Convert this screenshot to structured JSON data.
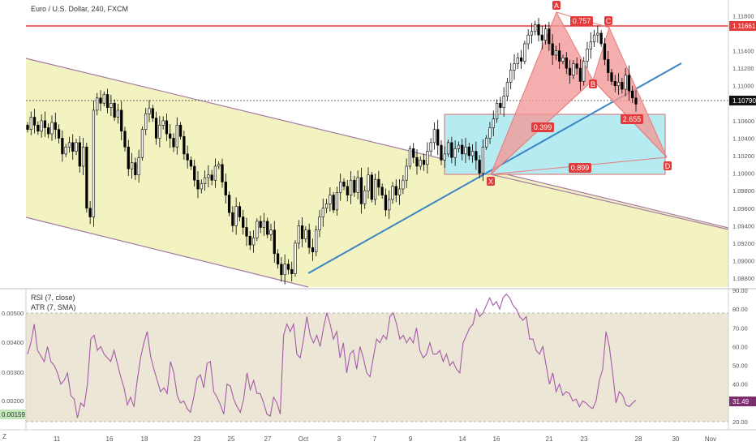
{
  "header": {
    "symbol_title": "Euro / U.S. Dollar, 240, FXCM",
    "rsi_label": "RSI (7, close)",
    "atr_label": "ATR (7, SMA)",
    "corner_label": "Z"
  },
  "colors": {
    "bull": "#ffffff",
    "bear": "#000000",
    "channel_fill": "#f3f2c1",
    "channel_line": "#a57ba5",
    "resistance_line": "#e33b3b",
    "trend_line": "#3d85c6",
    "pattern_fill": "#f29a9a",
    "pattern_stroke": "#e67b7b",
    "box_fill": "#b6ecf1",
    "box_stroke": "#d86b6b",
    "rsi_line": "#a45aa8",
    "rsi_band": "#ece6d6",
    "last_price_bg": "#111111",
    "resistance_bg": "#e33b3b",
    "rsi_value_bg": "#7d2e6e",
    "atr_value_bg": "#c3e7b9"
  },
  "chart_data": [
    {
      "type": "candlestick",
      "title": "Euro / U.S. Dollar, 240, FXCM",
      "x_ticks": [
        "11",
        "16",
        "18",
        "23",
        "25",
        "27",
        "Oct",
        "3",
        "7",
        "9",
        "14",
        "16",
        "21",
        "23",
        "28",
        "30",
        "Nov"
      ],
      "y_ticks": [
        "1.11800",
        "1.11660",
        "1.11400",
        "1.11200",
        "1.11000",
        "1.10790",
        "1.10600",
        "1.10400",
        "1.10200",
        "1.10000",
        "1.09800",
        "1.09600",
        "1.09400",
        "1.09200",
        "1.09000",
        "1.08800"
      ],
      "ylim": [
        1.0868,
        1.1198
      ],
      "last_price": "1.10790",
      "resistance_price": "1.11661",
      "closes": [
        1.105,
        1.1064,
        1.1055,
        1.1048,
        1.106,
        1.1052,
        1.1045,
        1.1058,
        1.105,
        1.104,
        1.1022,
        1.103,
        1.1035,
        1.1025,
        1.1035,
        1.1008,
        1.103,
        1.096,
        1.095,
        1.1072,
        1.1086,
        1.108,
        1.109,
        1.1075,
        1.108,
        1.1064,
        1.1072,
        1.1048,
        1.103,
        1.1005,
        1.1012,
        1.0998,
        1.1018,
        1.105,
        1.1068,
        1.1074,
        1.1063,
        1.104,
        1.1055,
        1.106,
        1.1045,
        1.104,
        1.103,
        1.1055,
        1.1042,
        1.1022,
        1.1015,
        1.1008,
        1.0992,
        1.0982,
        1.0988,
        1.0995,
        1.0998,
        1.0992,
        1.1008,
        1.101,
        1.099,
        1.0975,
        1.0955,
        1.094,
        1.0962,
        1.095,
        1.0938,
        1.0928,
        1.0918,
        1.0926,
        1.0945,
        1.0938,
        1.0945,
        1.093,
        1.0935,
        1.0908,
        1.0896,
        1.0884,
        1.0896,
        1.089,
        1.0885,
        1.092,
        1.094,
        1.0925,
        1.0935,
        1.0915,
        1.091,
        1.0935,
        1.095,
        1.096,
        1.0965,
        1.0975,
        1.0958,
        1.0978,
        1.099,
        1.0985,
        1.0975,
        1.0992,
        1.0978,
        1.0995,
        1.0965,
        1.098,
        1.0998,
        1.097,
        1.0993,
        1.0984,
        1.0975,
        1.0958,
        1.097,
        1.0985,
        1.0975,
        1.0982,
        1.0992,
        1.1008,
        1.1028,
        1.1018,
        1.1008,
        1.1015,
        1.101,
        1.1025,
        1.1035,
        1.105,
        1.1032,
        1.1015,
        1.1022,
        1.1035,
        1.1018,
        1.1028,
        1.1032,
        1.1022,
        1.103,
        1.102,
        1.1025,
        1.1015,
        1.1,
        1.103,
        1.104,
        1.1052,
        1.1062,
        1.108,
        1.1075,
        1.1088,
        1.1104,
        1.1118,
        1.1125,
        1.1132,
        1.1128,
        1.1148,
        1.1158,
        1.1162,
        1.117,
        1.1158,
        1.1152,
        1.1165,
        1.1148,
        1.1135,
        1.114,
        1.1128,
        1.1132,
        1.112,
        1.1112,
        1.1125,
        1.112,
        1.1105,
        1.1128,
        1.1142,
        1.115,
        1.1158,
        1.116,
        1.1148,
        1.113,
        1.1115,
        1.1105,
        1.11,
        1.1104,
        1.1096,
        1.1112,
        1.1094,
        1.1086,
        1.1079
      ],
      "patterns": {
        "points": [
          "X",
          "A",
          "B",
          "C",
          "D"
        ],
        "ratios": [
          "0.757",
          "0.399",
          "2.655",
          "0.899"
        ]
      }
    },
    {
      "type": "line",
      "series": [
        {
          "name": "RSI (7, close)",
          "values": [
            56,
            62,
            72,
            58,
            55,
            52,
            60,
            52,
            50,
            46,
            40,
            42,
            46,
            34,
            32,
            22,
            30,
            28,
            40,
            64,
            66,
            58,
            60,
            56,
            54,
            52,
            58,
            51,
            44,
            38,
            29,
            33,
            28,
            42,
            54,
            62,
            68,
            55,
            48,
            42,
            36,
            38,
            35,
            52,
            46,
            34,
            30,
            31,
            27,
            25,
            33,
            43,
            45,
            38,
            51,
            52,
            36,
            33,
            29,
            24,
            40,
            39,
            32,
            28,
            25,
            32,
            46,
            37,
            42,
            35,
            35,
            30,
            24,
            23,
            33,
            30,
            24,
            66,
            72,
            68,
            72,
            56,
            54,
            64,
            76,
            66,
            62,
            66,
            60,
            70,
            78,
            72,
            64,
            68,
            54,
            62,
            46,
            56,
            58,
            48,
            60,
            54,
            46,
            44,
            54,
            64,
            62,
            66,
            64,
            76,
            78,
            72,
            64,
            66,
            62,
            65,
            62,
            70,
            58,
            54,
            56,
            62,
            56,
            56,
            58,
            52,
            56,
            50,
            52,
            48,
            46,
            62,
            66,
            70,
            72,
            80,
            76,
            78,
            82,
            86,
            82,
            84,
            80,
            86,
            88,
            86,
            82,
            80,
            76,
            74,
            76,
            64,
            64,
            58,
            56,
            60,
            50,
            40,
            46,
            36,
            40,
            34,
            36,
            35,
            31,
            32,
            28,
            31,
            30,
            28,
            27,
            31,
            42,
            48,
            68,
            60,
            46,
            30,
            36,
            34,
            29,
            28,
            30,
            31.49
          ]
        }
      ],
      "y_ticks": [
        "90.00",
        "80.00",
        "70.00",
        "60.00",
        "50.00",
        "40.00",
        "30.00",
        "20.00"
      ],
      "left_ticks": [
        "0.00500",
        "0.00400",
        "0.00300",
        "0.00200",
        "0.00159"
      ],
      "ylim": [
        20,
        90
      ],
      "band": [
        20,
        80
      ],
      "rsi_value": "31.49",
      "atr_value": "0.00159"
    }
  ]
}
